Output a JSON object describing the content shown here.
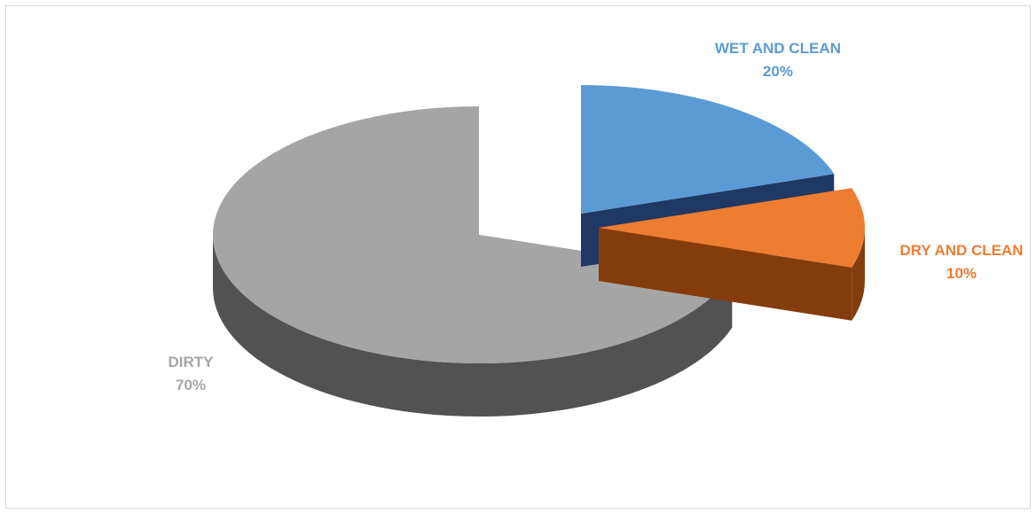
{
  "chart_data": {
    "type": "pie",
    "variant": "3d-exploded",
    "title": "",
    "slices": [
      {
        "label": "WET AND CLEAN",
        "value": 20,
        "value_label": "20%",
        "color": "#5b9bd5",
        "side_color": "#1f3864",
        "label_color": "#5b9bd5"
      },
      {
        "label": "DRY AND CLEAN",
        "value": 10,
        "value_label": "10%",
        "color": "#ed7d31",
        "side_color": "#843c0c",
        "label_color": "#ed7d31"
      },
      {
        "label": "DIRTY",
        "value": 70,
        "value_label": "70%",
        "color": "#a5a5a5",
        "side_color": "#525252",
        "label_color": "#a5a5a5"
      }
    ],
    "legend": "none"
  }
}
